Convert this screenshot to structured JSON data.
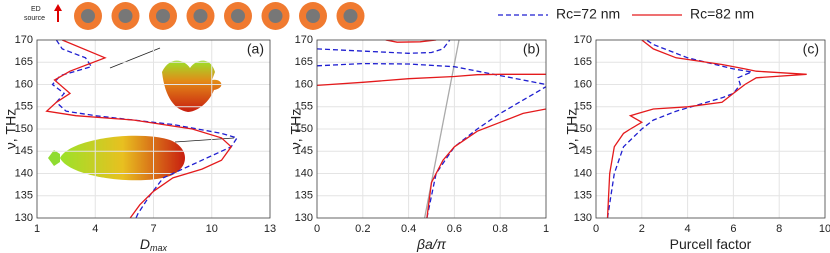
{
  "schematic": {
    "label_lines": [
      "ED",
      "source"
    ]
  },
  "chart_data": [
    {
      "type": "line",
      "panel_label": "(a)",
      "ylabel": "ν, THz",
      "xlabel": "D",
      "xlabel_sub": "max",
      "xlim": [
        1,
        13
      ],
      "xticks": [
        1,
        4,
        7,
        10,
        13
      ],
      "ylim": [
        130,
        170
      ],
      "yticks": [
        130,
        135,
        140,
        145,
        150,
        155,
        160,
        165,
        170
      ],
      "grid": true,
      "series": [
        {
          "name": "Rc=72 nm",
          "color": "#1f1fd0",
          "linestyle": "dashed",
          "x": [
            2.0,
            2.3,
            3.5,
            3.8,
            2.2,
            1.8,
            2.4,
            2.0,
            2.5,
            4.0,
            8.0,
            10.5,
            11.3,
            11.0,
            10.0,
            8.5,
            7.5,
            6.8,
            6.2,
            6.1
          ],
          "values": [
            170,
            168,
            166,
            164,
            162,
            160,
            158,
            156,
            154,
            153,
            151,
            149,
            148,
            146,
            144,
            141,
            139,
            135,
            131,
            130
          ]
        },
        {
          "name": "Rc=82 nm",
          "color": "#e41a1c",
          "linestyle": "solid",
          "x": [
            2.3,
            4.5,
            2.7,
            1.9,
            2.7,
            2.0,
            1.5,
            3.0,
            6.0,
            9.0,
            10.5,
            11.0,
            10.5,
            9.5,
            8.0,
            7.0,
            6.3,
            5.8
          ],
          "values": [
            170,
            166,
            163,
            161,
            158,
            156,
            154,
            153,
            152,
            150,
            148,
            146,
            143,
            141,
            139,
            136,
            133,
            130
          ]
        }
      ]
    },
    {
      "type": "line",
      "panel_label": "(b)",
      "ylabel": "ν, THz",
      "xlabel": "βa/π",
      "xlim": [
        0,
        1
      ],
      "xticks": [
        0,
        0.2,
        0.4,
        0.6,
        0.8,
        1
      ],
      "ylim": [
        130,
        170
      ],
      "yticks": [
        130,
        135,
        140,
        145,
        150,
        155,
        160,
        165,
        170
      ],
      "grid": true,
      "series": [
        {
          "color": "#aaaaaa",
          "linestyle": "solid",
          "x": [
            0.47,
            0.62
          ],
          "values": [
            130,
            170
          ]
        },
        {
          "color": "#1f1fd0",
          "linestyle": "dashed",
          "x": [
            0.48,
            0.52,
            0.6,
            0.7,
            0.8,
            0.9,
            1.0,
            null,
            0,
            0.2,
            0.4,
            0.6,
            0.8,
            0.9,
            1.0,
            null,
            0,
            0.2,
            0.4,
            0.5,
            0.55,
            0.58
          ],
          "values": [
            130,
            140,
            146,
            150,
            153.5,
            156.5,
            159.5,
            null,
            164.2,
            164.7,
            164.6,
            164,
            162,
            161,
            160,
            null,
            168,
            167.5,
            167,
            167.2,
            168,
            170
          ]
        },
        {
          "color": "#e41a1c",
          "linestyle": "solid",
          "x": [
            0.48,
            0.5,
            0.55,
            0.6,
            0.7,
            0.8,
            0.9,
            1.0,
            null,
            0,
            0.2,
            0.4,
            0.6,
            0.7,
            0.8,
            1.0,
            null,
            0.3,
            0.35,
            0.45,
            0.52
          ],
          "values": [
            130,
            138,
            143,
            146,
            149.5,
            151.5,
            153.5,
            154.5,
            null,
            159.8,
            160.5,
            161.3,
            161.8,
            162.2,
            162.3,
            162.3,
            null,
            170,
            169.5,
            169.6,
            170
          ]
        }
      ]
    },
    {
      "type": "line",
      "panel_label": "(c)",
      "ylabel": "ν, THz",
      "xlabel": "Purcell factor",
      "xlim": [
        0,
        10
      ],
      "xticks": [
        0,
        2,
        4,
        6,
        8,
        10
      ],
      "ylim": [
        130,
        170
      ],
      "yticks": [
        130,
        135,
        140,
        145,
        150,
        155,
        160,
        165,
        170
      ],
      "grid": true,
      "series": [
        {
          "color": "#1f1fd0",
          "linestyle": "dashed",
          "x": [
            0.5,
            0.8,
            1.2,
            2.0,
            2.5,
            3.5,
            5.5,
            6.0,
            6.3,
            6.2,
            6.5,
            6.8,
            6.0,
            4.0,
            2.5,
            2.2
          ],
          "values": [
            130,
            140,
            146,
            150,
            152,
            154,
            157,
            158,
            160,
            161.5,
            162.2,
            162.8,
            163.5,
            166,
            169,
            170
          ]
        },
        {
          "color": "#e41a1c",
          "linestyle": "solid",
          "x": [
            0.5,
            0.6,
            0.8,
            1.2,
            1.5,
            2.0,
            1.5,
            2.5,
            4.0,
            5.5,
            6.0,
            6.5,
            7.0,
            9.2,
            7.0,
            6.5,
            5.5,
            3.5,
            2.5,
            2.0
          ],
          "values": [
            130,
            140,
            146,
            149,
            150,
            151.5,
            153,
            154.5,
            155,
            156,
            158,
            160,
            161.5,
            162.3,
            163,
            163.5,
            164.5,
            166,
            168,
            170
          ]
        }
      ]
    }
  ]
}
